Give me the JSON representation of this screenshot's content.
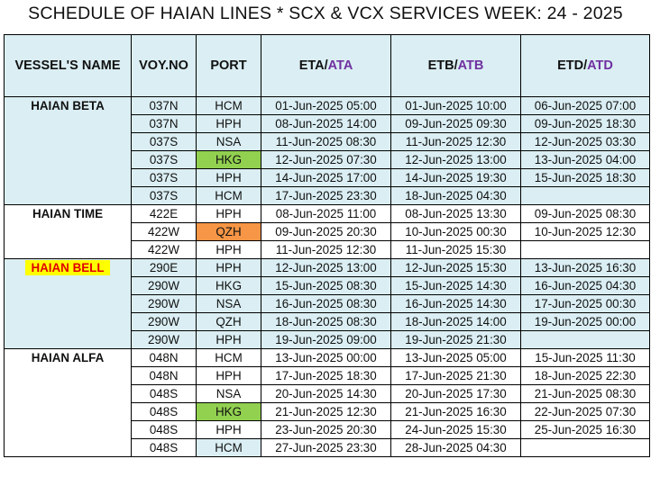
{
  "title": "SCHEDULE OF HAIAN LINES * SCX & VCX SERVICES WEEK: 24 - 2025",
  "headers": {
    "vessel": "VESSEL'S NAME",
    "voy": "VOY.NO",
    "port": "PORT",
    "eta_a": "ETA/",
    "eta_b": "ATA",
    "etb_a": "ETB/",
    "etb_b": "ATB",
    "etd_a": "ETD/",
    "etd_b": "ATD"
  },
  "colors": {
    "header_bg": "#daeef3",
    "purple": "#7030a0",
    "highlight_yellow": "#ffff00",
    "highlight_red": "#e00000",
    "port_orange": "#f79646",
    "port_amber": "#ffc000",
    "port_green": "#92d050"
  },
  "groups": [
    {
      "vessel": "HAIAN BETA",
      "shade": "blue",
      "highlight": false,
      "rows": [
        {
          "voy": "037N",
          "port": "HCM",
          "port_color": "",
          "eta": "01-Jun-2025 05:00",
          "etb": "01-Jun-2025 10:00",
          "etd": "06-Jun-2025 07:00"
        },
        {
          "voy": "037N",
          "port": "HPH",
          "port_color": "",
          "eta": "08-Jun-2025 14:00",
          "etb": "09-Jun-2025 09:30",
          "etd": "09-Jun-2025 18:30"
        },
        {
          "voy": "037S",
          "port": "NSA",
          "port_color": "amber",
          "eta": "11-Jun-2025 08:30",
          "etb": "11-Jun-2025 12:30",
          "etd": "12-Jun-2025 03:30"
        },
        {
          "voy": "037S",
          "port": "HKG",
          "port_color": "green",
          "eta": "12-Jun-2025 07:30",
          "etb": "12-Jun-2025 13:00",
          "etd": "13-Jun-2025 04:00"
        },
        {
          "voy": "037S",
          "port": "HPH",
          "port_color": "",
          "eta": "14-Jun-2025 17:00",
          "etb": "14-Jun-2025 19:30",
          "etd": "15-Jun-2025 18:30"
        },
        {
          "voy": "037S",
          "port": "HCM",
          "port_color": "",
          "eta": "17-Jun-2025 23:30",
          "etb": "18-Jun-2025 04:30",
          "etd": ""
        }
      ]
    },
    {
      "vessel": "HAIAN TIME",
      "shade": "white",
      "highlight": false,
      "rows": [
        {
          "voy": "422E",
          "port": "HPH",
          "port_color": "",
          "eta": "08-Jun-2025 11:00",
          "etb": "08-Jun-2025 13:30",
          "etd": "09-Jun-2025 08:30"
        },
        {
          "voy": "422W",
          "port": "QZH",
          "port_color": "orange",
          "eta": "09-Jun-2025 20:30",
          "etb": "10-Jun-2025 00:30",
          "etd": "10-Jun-2025 12:30"
        },
        {
          "voy": "422W",
          "port": "HPH",
          "port_color": "",
          "eta": "11-Jun-2025 12:30",
          "etb": "11-Jun-2025 15:30",
          "etd": ""
        }
      ]
    },
    {
      "vessel": "HAIAN BELL",
      "shade": "blue",
      "highlight": true,
      "rows": [
        {
          "voy": "290E",
          "port": "HPH",
          "port_color": "",
          "eta": "12-Jun-2025 13:00",
          "etb": "12-Jun-2025 15:30",
          "etd": "13-Jun-2025 16:30"
        },
        {
          "voy": "290W",
          "port": "HKG",
          "port_color": "",
          "eta": "15-Jun-2025 08:30",
          "etb": "15-Jun-2025 14:30",
          "etd": "16-Jun-2025 04:30"
        },
        {
          "voy": "290W",
          "port": "NSA",
          "port_color": "",
          "eta": "16-Jun-2025 08:30",
          "etb": "16-Jun-2025 14:30",
          "etd": "17-Jun-2025 00:30"
        },
        {
          "voy": "290W",
          "port": "QZH",
          "port_color": "",
          "eta": "18-Jun-2025 08:30",
          "etb": "18-Jun-2025 14:00",
          "etd": "19-Jun-2025 00:00"
        },
        {
          "voy": "290W",
          "port": "HPH",
          "port_color": "",
          "eta": "19-Jun-2025 09:00",
          "etb": "19-Jun-2025 21:30",
          "etd": ""
        }
      ]
    },
    {
      "vessel": "HAIAN ALFA",
      "shade": "white",
      "highlight": false,
      "rows": [
        {
          "voy": "048N",
          "port": "HCM",
          "port_color": "",
          "eta": "13-Jun-2025 00:00",
          "etb": "13-Jun-2025 05:00",
          "etd": "15-Jun-2025 11:30"
        },
        {
          "voy": "048N",
          "port": "HPH",
          "port_color": "",
          "eta": "17-Jun-2025 18:30",
          "etb": "17-Jun-2025 21:30",
          "etd": "18-Jun-2025 22:30"
        },
        {
          "voy": "048S",
          "port": "NSA",
          "port_color": "amber",
          "eta": "20-Jun-2025 14:30",
          "etb": "20-Jun-2025 17:30",
          "etd": "21-Jun-2025 08:30"
        },
        {
          "voy": "048S",
          "port": "HKG",
          "port_color": "green",
          "eta": "21-Jun-2025 12:30",
          "etb": "21-Jun-2025 16:30",
          "etd": "22-Jun-2025 07:30"
        },
        {
          "voy": "048S",
          "port": "HPH",
          "port_color": "",
          "eta": "23-Jun-2025 20:30",
          "etb": "24-Jun-2025 15:30",
          "etd": "25-Jun-2025 16:30"
        },
        {
          "voy": "048S",
          "port": "HCM",
          "port_color": "blue",
          "eta": "27-Jun-2025 23:30",
          "etb": "28-Jun-2025 04:30",
          "etd": ""
        }
      ]
    }
  ]
}
